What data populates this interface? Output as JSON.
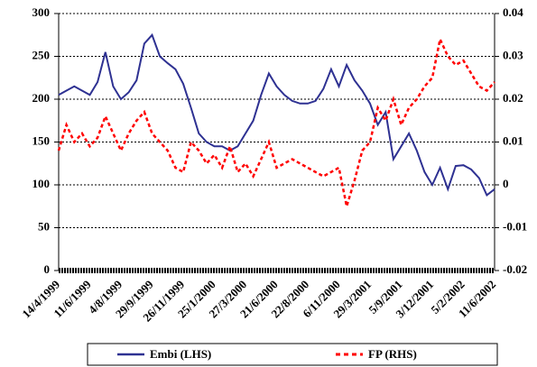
{
  "chart_data": {
    "type": "line",
    "categories": [
      "14/4/1999",
      null,
      null,
      null,
      "11/6/1999",
      null,
      null,
      null,
      "4/8/1999",
      null,
      null,
      null,
      "29/9/1999",
      null,
      null,
      null,
      "26/11/1999",
      null,
      null,
      null,
      "25/1/2000",
      null,
      null,
      null,
      "27/3/2000",
      null,
      null,
      null,
      "21/6/2000",
      null,
      null,
      null,
      "22/8/2000",
      null,
      null,
      null,
      "6/11/2000",
      null,
      null,
      null,
      "29/3/2001",
      null,
      null,
      null,
      "5/9/2001",
      null,
      null,
      null,
      "3/12/2001",
      null,
      null,
      null,
      "5/2/2002",
      null,
      null,
      null,
      "11/6/2002"
    ],
    "series": [
      {
        "name": "Embi (LHS)",
        "color": "#2e3192",
        "values": [
          205,
          210,
          215,
          210,
          205,
          220,
          255,
          215,
          200,
          208,
          222,
          265,
          275,
          250,
          242,
          235,
          218,
          190,
          160,
          150,
          145,
          145,
          140,
          145,
          160,
          175,
          205,
          230,
          215,
          205,
          198,
          195,
          195,
          198,
          212,
          235,
          215,
          240,
          222,
          210,
          195,
          170,
          185,
          130,
          145,
          160,
          140,
          115,
          100,
          120,
          95,
          122,
          123,
          118,
          108,
          88,
          95
        ]
      },
      {
        "name": "FP (RHS)",
        "color": "#ff0000",
        "axis": "y2",
        "dashed": true,
        "values": [
          0.008,
          0.014,
          0.01,
          0.012,
          0.009,
          0.011,
          0.016,
          0.012,
          0.008,
          0.012,
          0.015,
          0.017,
          0.012,
          0.01,
          0.008,
          0.004,
          0.003,
          0.01,
          0.008,
          0.005,
          0.007,
          0.004,
          0.009,
          0.003,
          0.005,
          0.002,
          0.006,
          0.01,
          0.004,
          0.005,
          0.006,
          0.005,
          0.004,
          0.003,
          0.002,
          0.003,
          0.004,
          -0.005,
          0.001,
          0.008,
          0.01,
          0.018,
          0.015,
          0.02,
          0.014,
          0.018,
          0.02,
          0.023,
          0.025,
          0.034,
          0.03,
          0.028,
          0.029,
          0.026,
          0.023,
          0.022,
          0.024
        ]
      }
    ],
    "ylim": [
      0,
      300
    ],
    "yticks": [
      0,
      50,
      100,
      150,
      200,
      250,
      300
    ],
    "y2lim": [
      -0.02,
      0.04
    ],
    "y2ticks": [
      -0.02,
      -0.01,
      0,
      0.01,
      0.02,
      0.03,
      0.04
    ],
    "grid": true,
    "legend": "bottom"
  }
}
